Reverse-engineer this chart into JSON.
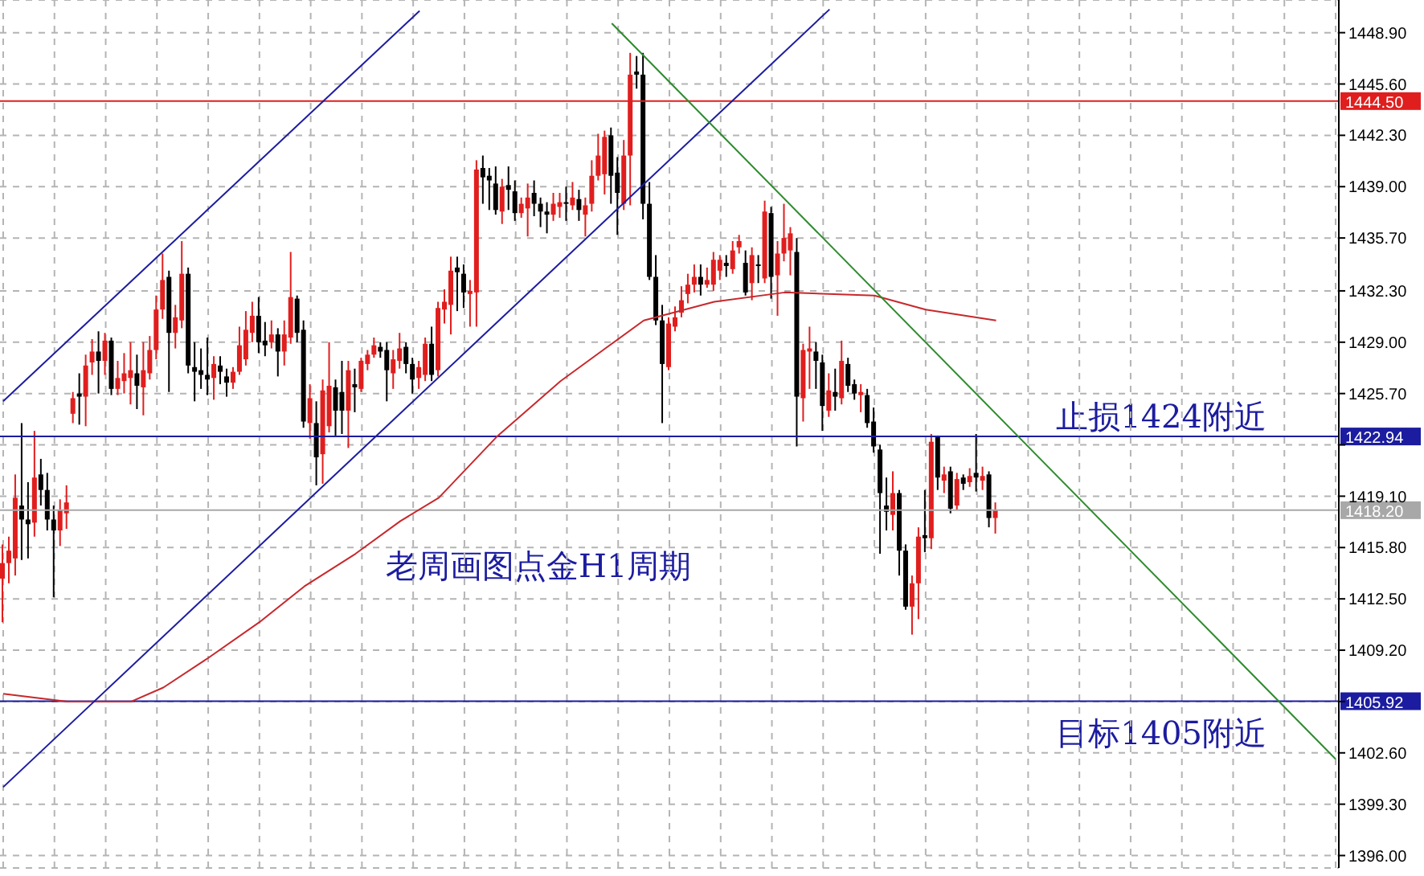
{
  "chart_data": {
    "type": "candlestick",
    "categories": [
      null,
      null,
      null,
      null,
      null,
      null,
      null,
      null,
      null,
      null,
      null,
      null,
      null,
      null,
      null,
      null,
      null,
      null,
      null,
      null,
      null,
      null,
      null,
      null,
      null,
      null,
      null,
      null,
      null,
      null,
      null,
      null,
      null,
      null,
      null,
      null,
      null,
      null,
      null,
      null,
      null,
      null,
      null,
      null,
      null,
      null,
      null,
      null,
      null,
      null,
      null,
      null,
      null,
      null,
      null,
      null,
      null,
      null,
      null,
      null,
      null,
      null,
      null,
      null,
      null,
      null,
      null,
      null,
      null,
      null,
      null,
      null,
      null,
      null,
      null,
      null,
      null,
      null,
      null,
      null,
      null,
      null,
      null,
      null,
      null,
      null,
      null,
      null,
      null,
      null,
      null,
      null,
      null,
      null,
      null,
      null,
      null,
      null,
      null,
      null,
      null,
      null,
      null,
      null,
      null,
      null,
      null,
      null,
      null,
      null,
      null,
      null,
      null,
      null,
      null,
      null,
      null,
      null,
      null,
      null,
      null,
      null,
      null,
      null,
      null,
      null,
      null,
      null,
      null,
      null,
      null,
      null,
      null,
      null,
      null,
      null,
      null,
      null,
      null,
      null,
      null,
      null,
      null,
      null,
      null,
      null,
      null,
      null,
      null,
      null,
      null,
      null,
      null,
      null,
      null,
      null,
      null,
      null,
      null,
      null,
      null,
      null,
      null,
      null,
      null,
      null,
      null,
      null,
      null,
      null,
      null,
      null,
      null,
      null,
      null,
      null,
      null,
      null,
      null,
      null,
      null,
      null,
      null,
      null,
      null,
      null,
      null,
      null,
      null,
      null,
      null,
      null,
      null,
      null,
      null,
      null,
      null,
      null,
      null,
      null,
      null,
      null,
      null,
      null,
      null,
      null,
      null,
      null,
      null
    ],
    "ohlc": [
      [
        1413.8,
        1416.0,
        1411.0,
        1414.8
      ],
      [
        1414.8,
        1416.5,
        1413.5,
        1415.6
      ],
      [
        1415.1,
        1420.5,
        1414.0,
        1419.0
      ],
      [
        1418.5,
        1423.8,
        1415.0,
        1417.6
      ],
      [
        1417.6,
        1420.0,
        1415.1,
        1417.3
      ],
      [
        1417.4,
        1423.3,
        1416.5,
        1420.3
      ],
      [
        1420.5,
        1421.5,
        1418.5,
        1419.5
      ],
      [
        1419.5,
        1420.6,
        1416.9,
        1417.6
      ],
      [
        1417.6,
        1418.5,
        1412.6,
        1416.9
      ],
      [
        1416.9,
        1418.9,
        1415.9,
        1418.2
      ],
      [
        1418.0,
        1419.8,
        1417.0,
        1418.7
      ],
      [
        1424.4,
        1425.8,
        1423.8,
        1425.4
      ],
      [
        1425.7,
        1427.0,
        1423.7,
        1425.5
      ],
      [
        1425.5,
        1428.2,
        1423.6,
        1427.5
      ],
      [
        1427.7,
        1429.2,
        1426.9,
        1428.4
      ],
      [
        1428.4,
        1429.7,
        1425.7,
        1427.8
      ],
      [
        1427.8,
        1429.6,
        1426.9,
        1429.1
      ],
      [
        1429.1,
        1429.3,
        1425.6,
        1426.0
      ],
      [
        1426.0,
        1427.8,
        1425.6,
        1426.7
      ],
      [
        1426.5,
        1428.3,
        1425.7,
        1427.0
      ],
      [
        1426.7,
        1429.0,
        1425.0,
        1427.2
      ],
      [
        1427.0,
        1428.2,
        1424.7,
        1426.2
      ],
      [
        1426.1,
        1429.0,
        1424.3,
        1427.2
      ],
      [
        1427.0,
        1429.4,
        1426.6,
        1428.5
      ],
      [
        1428.5,
        1432.0,
        1427.9,
        1431.1
      ],
      [
        1431.1,
        1434.7,
        1430.5,
        1433.0
      ],
      [
        1433.2,
        1433.6,
        1425.8,
        1429.6
      ],
      [
        1429.6,
        1431.4,
        1428.6,
        1430.6
      ],
      [
        1430.4,
        1435.5,
        1429.9,
        1433.4
      ],
      [
        1433.4,
        1433.8,
        1427.0,
        1427.5
      ],
      [
        1427.4,
        1429.0,
        1425.2,
        1427.1
      ],
      [
        1427.2,
        1428.6,
        1426.0,
        1426.9
      ],
      [
        1426.9,
        1429.3,
        1425.6,
        1426.6
      ],
      [
        1426.7,
        1428.1,
        1425.3,
        1427.6
      ],
      [
        1427.5,
        1428.1,
        1426.3,
        1427.1
      ],
      [
        1426.8,
        1427.3,
        1425.5,
        1426.4
      ],
      [
        1426.4,
        1427.4,
        1426.0,
        1427.1
      ],
      [
        1427.1,
        1430.0,
        1426.9,
        1428.8
      ],
      [
        1427.9,
        1431.0,
        1427.5,
        1429.8
      ],
      [
        1429.6,
        1431.6,
        1429.0,
        1430.7
      ],
      [
        1430.7,
        1431.9,
        1428.3,
        1429.0
      ],
      [
        1429.1,
        1430.3,
        1428.1,
        1428.8
      ],
      [
        1429.0,
        1430.4,
        1428.6,
        1429.5
      ],
      [
        1429.5,
        1429.9,
        1426.8,
        1428.4
      ],
      [
        1428.4,
        1430.4,
        1427.5,
        1429.5
      ],
      [
        1429.3,
        1434.8,
        1428.9,
        1431.9
      ],
      [
        1431.8,
        1432.0,
        1429.0,
        1429.6
      ],
      [
        1429.8,
        1430.4,
        1423.5,
        1423.9
      ],
      [
        1423.8,
        1426.3,
        1422.8,
        1425.4
      ],
      [
        1423.8,
        1425.2,
        1419.8,
        1421.6
      ],
      [
        1421.8,
        1426.6,
        1419.9,
        1425.9
      ],
      [
        1423.6,
        1429.0,
        1423.2,
        1426.2
      ],
      [
        1426.1,
        1426.6,
        1423.0,
        1424.6
      ],
      [
        1425.8,
        1427.8,
        1423.1,
        1424.6
      ],
      [
        1424.6,
        1427.8,
        1422.2,
        1427.2
      ],
      [
        1426.3,
        1427.3,
        1424.5,
        1426.1
      ],
      [
        1426.0,
        1428.0,
        1425.8,
        1427.8
      ],
      [
        1427.6,
        1428.5,
        1427.2,
        1428.2
      ],
      [
        1428.2,
        1429.3,
        1428.0,
        1428.8
      ],
      [
        1428.7,
        1429.0,
        1428.0,
        1428.4
      ],
      [
        1428.5,
        1429.0,
        1425.2,
        1427.2
      ],
      [
        1427.0,
        1428.5,
        1426.0,
        1427.9
      ],
      [
        1427.8,
        1429.6,
        1427.3,
        1428.6
      ],
      [
        1428.7,
        1429.0,
        1427.0,
        1427.6
      ],
      [
        1427.6,
        1428.0,
        1425.7,
        1426.6
      ],
      [
        1426.7,
        1427.8,
        1426.0,
        1427.4
      ],
      [
        1426.9,
        1429.3,
        1426.5,
        1428.9
      ],
      [
        1428.9,
        1430.0,
        1426.5,
        1426.9
      ],
      [
        1427.2,
        1431.6,
        1426.8,
        1431.2
      ],
      [
        1431.1,
        1432.4,
        1430.2,
        1431.6
      ],
      [
        1431.4,
        1434.5,
        1429.5,
        1433.6
      ],
      [
        1433.8,
        1434.5,
        1431.0,
        1433.5
      ],
      [
        1433.4,
        1434.0,
        1431.2,
        1432.2
      ],
      [
        1432.1,
        1433.0,
        1430.0,
        1432.3
      ],
      [
        1432.2,
        1440.7,
        1430.0,
        1440.1
      ],
      [
        1440.2,
        1441.0,
        1437.9,
        1439.6
      ],
      [
        1439.7,
        1440.2,
        1437.5,
        1439.4
      ],
      [
        1439.2,
        1440.3,
        1437.2,
        1437.5
      ],
      [
        1437.4,
        1439.5,
        1436.6,
        1439.0
      ],
      [
        1439.1,
        1440.3,
        1437.5,
        1438.8
      ],
      [
        1438.7,
        1439.4,
        1436.8,
        1437.3
      ],
      [
        1437.3,
        1438.3,
        1437.0,
        1437.9
      ],
      [
        1437.6,
        1439.2,
        1435.8,
        1438.3
      ],
      [
        1438.6,
        1439.4,
        1437.1,
        1437.9
      ],
      [
        1437.9,
        1438.3,
        1436.4,
        1437.4
      ],
      [
        1437.4,
        1438.0,
        1436.0,
        1437.2
      ],
      [
        1437.2,
        1438.6,
        1436.8,
        1437.9
      ],
      [
        1437.7,
        1438.6,
        1437.0,
        1438.0
      ],
      [
        1438.0,
        1439.0,
        1436.8,
        1437.9
      ],
      [
        1437.8,
        1439.3,
        1437.5,
        1438.3
      ],
      [
        1438.2,
        1438.8,
        1436.8,
        1437.5
      ],
      [
        1437.2,
        1438.3,
        1435.8,
        1437.8
      ],
      [
        1437.9,
        1440.7,
        1437.4,
        1439.7
      ],
      [
        1439.7,
        1442.4,
        1439.4,
        1441.0
      ],
      [
        1439.8,
        1442.6,
        1438.5,
        1442.2
      ],
      [
        1442.3,
        1442.8,
        1437.9,
        1439.7
      ],
      [
        1439.9,
        1440.9,
        1435.9,
        1438.6
      ],
      [
        1437.9,
        1442.0,
        1437.5,
        1441.0
      ],
      [
        1441.0,
        1447.6,
        1437.8,
        1446.2
      ],
      [
        1446.4,
        1447.4,
        1445.3,
        1446.2
      ],
      [
        1446.2,
        1447.6,
        1436.9,
        1437.9
      ],
      [
        1437.9,
        1439.3,
        1433.0,
        1433.2
      ],
      [
        1433.2,
        1434.6,
        1430.1,
        1430.4
      ],
      [
        1430.4,
        1431.4,
        1423.8,
        1427.6
      ],
      [
        1427.4,
        1430.6,
        1427.2,
        1430.2
      ],
      [
        1430.0,
        1431.3,
        1429.7,
        1430.6
      ],
      [
        1430.9,
        1432.6,
        1430.6,
        1431.7
      ],
      [
        1432.1,
        1433.4,
        1431.5,
        1432.7
      ],
      [
        1432.7,
        1434.0,
        1432.2,
        1433.2
      ],
      [
        1433.2,
        1434.0,
        1432.0,
        1432.7
      ],
      [
        1432.7,
        1433.8,
        1432.5,
        1433.0
      ],
      [
        1432.7,
        1434.8,
        1432.3,
        1434.3
      ],
      [
        1433.6,
        1434.6,
        1433.0,
        1434.3
      ],
      [
        1434.1,
        1434.6,
        1433.2,
        1433.9
      ],
      [
        1433.7,
        1435.5,
        1433.4,
        1434.9
      ],
      [
        1435.1,
        1435.9,
        1434.7,
        1435.5
      ],
      [
        1434.1,
        1434.9,
        1432.0,
        1432.2
      ],
      [
        1432.8,
        1435.1,
        1431.7,
        1434.6
      ],
      [
        1434.0,
        1434.6,
        1432.8,
        1433.9
      ],
      [
        1433.1,
        1438.1,
        1432.8,
        1437.4
      ],
      [
        1437.3,
        1437.7,
        1431.8,
        1433.2
      ],
      [
        1433.3,
        1435.5,
        1430.7,
        1434.7
      ],
      [
        1434.7,
        1437.9,
        1434.2,
        1435.7
      ],
      [
        1434.9,
        1436.4,
        1433.3,
        1436.0
      ],
      [
        1434.8,
        1435.7,
        1422.3,
        1425.5
      ],
      [
        1425.4,
        1428.9,
        1423.9,
        1428.5
      ],
      [
        1428.4,
        1430.0,
        1426.0,
        1428.6
      ],
      [
        1428.4,
        1429.0,
        1426.0,
        1427.8
      ],
      [
        1427.7,
        1428.2,
        1423.3,
        1424.9
      ],
      [
        1424.6,
        1427.0,
        1424.2,
        1425.9
      ],
      [
        1425.8,
        1427.3,
        1424.6,
        1425.5
      ],
      [
        1425.4,
        1429.1,
        1425.0,
        1427.8
      ],
      [
        1427.6,
        1428.0,
        1425.8,
        1426.2
      ],
      [
        1426.3,
        1426.6,
        1425.3,
        1425.7
      ],
      [
        1425.6,
        1426.3,
        1424.5,
        1425.8
      ],
      [
        1425.6,
        1426.0,
        1423.5,
        1423.8
      ],
      [
        1423.9,
        1424.8,
        1421.9,
        1422.3
      ],
      [
        1422.1,
        1422.4,
        1415.4,
        1419.3
      ],
      [
        1418.5,
        1420.3,
        1416.9,
        1418.1
      ],
      [
        1417.9,
        1420.7,
        1416.9,
        1419.3
      ],
      [
        1419.3,
        1419.5,
        1414.0,
        1415.6
      ],
      [
        1415.6,
        1416.0,
        1411.8,
        1412.0
      ],
      [
        1412.0,
        1414.0,
        1410.2,
        1413.5
      ],
      [
        1413.5,
        1417.1,
        1411.2,
        1416.5
      ],
      [
        1416.6,
        1419.5,
        1415.5,
        1416.4
      ],
      [
        1416.4,
        1423.1,
        1415.7,
        1422.6
      ],
      [
        1422.9,
        1423.0,
        1419.5,
        1420.3
      ],
      [
        1420.1,
        1421.0,
        1419.3,
        1420.5
      ],
      [
        1420.7,
        1421.0,
        1418.0,
        1418.3
      ],
      [
        1418.5,
        1420.6,
        1418.2,
        1420.2
      ],
      [
        1420.3,
        1420.5,
        1419.5,
        1419.9
      ],
      [
        1420.0,
        1420.9,
        1419.7,
        1420.4
      ],
      [
        1420.6,
        1423.1,
        1419.4,
        1420.3
      ],
      [
        1420.1,
        1421.0,
        1419.5,
        1420.4
      ],
      [
        1420.5,
        1420.7,
        1417.1,
        1417.7
      ],
      [
        1417.7,
        1418.7,
        1416.7,
        1418.2
      ],
      null,
      null,
      null,
      null,
      null,
      null,
      null,
      null,
      null,
      null,
      null,
      null,
      null,
      null,
      null,
      null,
      null,
      null,
      null,
      null,
      null,
      null,
      null,
      null,
      null,
      null,
      null,
      null,
      null,
      null,
      null,
      null,
      null,
      null,
      null,
      null,
      null,
      null,
      null,
      null,
      null,
      null,
      null,
      null,
      null,
      null,
      null,
      null,
      null,
      null,
      null,
      null,
      null
    ],
    "colors": [
      "#e01e1e",
      "#e01e1e",
      "#e01e1e",
      "#000000",
      "#000000",
      "#e01e1e",
      "#000000",
      "#000000",
      "#000000",
      "#e01e1e",
      "#e01e1e",
      "#e01e1e",
      "#000000",
      "#e01e1e",
      "#e01e1e",
      "#000000",
      "#e01e1e",
      "#000000",
      "#e01e1e",
      "#e01e1e",
      "#e01e1e",
      "#000000",
      "#e01e1e",
      "#e01e1e",
      "#e01e1e",
      "#e01e1e",
      "#000000",
      "#e01e1e",
      "#e01e1e",
      "#000000",
      "#000000",
      "#000000",
      "#000000",
      "#e01e1e",
      "#000000",
      "#000000",
      "#e01e1e",
      "#e01e1e",
      "#e01e1e",
      "#e01e1e",
      "#000000",
      "#000000",
      "#e01e1e",
      "#000000",
      "#e01e1e",
      "#e01e1e",
      "#000000",
      "#000000",
      "#e01e1e",
      "#000000",
      "#e01e1e",
      "#e01e1e",
      "#000000",
      "#000000",
      "#e01e1e",
      "#000000",
      "#e01e1e",
      "#e01e1e",
      "#e01e1e",
      "#000000",
      "#000000",
      "#e01e1e",
      "#e01e1e",
      "#000000",
      "#000000",
      "#e01e1e",
      "#e01e1e",
      "#000000",
      "#e01e1e",
      "#e01e1e",
      "#e01e1e",
      "#000000",
      "#000000",
      "#e01e1e",
      "#e01e1e",
      "#000000",
      "#000000",
      "#000000",
      "#e01e1e",
      "#000000",
      "#000000",
      "#e01e1e",
      "#e01e1e",
      "#000000",
      "#000000",
      "#000000",
      "#e01e1e",
      "#e01e1e",
      "#000000",
      "#e01e1e",
      "#000000",
      "#e01e1e",
      "#e01e1e",
      "#e01e1e",
      "#e01e1e",
      "#000000",
      "#000000",
      "#e01e1e",
      "#e01e1e",
      "#000000",
      "#000000",
      "#000000",
      "#000000",
      "#000000",
      "#e01e1e",
      "#e01e1e",
      "#e01e1e",
      "#e01e1e",
      "#e01e1e",
      "#000000",
      "#e01e1e",
      "#e01e1e",
      "#e01e1e",
      "#000000",
      "#e01e1e",
      "#e01e1e",
      "#000000",
      "#e01e1e",
      "#000000",
      "#e01e1e",
      "#000000",
      "#e01e1e",
      "#e01e1e",
      "#e01e1e",
      "#000000",
      "#e01e1e",
      "#e01e1e",
      "#000000",
      "#000000",
      "#e01e1e",
      "#000000",
      "#e01e1e",
      "#000000",
      "#000000",
      "#e01e1e",
      "#000000",
      "#000000",
      "#000000",
      "#000000",
      "#e01e1e",
      "#000000",
      "#000000",
      "#e01e1e",
      "#e01e1e",
      "#000000",
      "#e01e1e",
      "#000000",
      "#e01e1e",
      "#000000",
      "#e01e1e",
      "#000000",
      "#e01e1e",
      "#000000",
      "#e01e1e",
      "#000000",
      "#e01e1e",
      null,
      null,
      null,
      null,
      null,
      null,
      null,
      null,
      null,
      null,
      null,
      null,
      null,
      null,
      null,
      null,
      null,
      null,
      null,
      null,
      null,
      null,
      null,
      null,
      null,
      null,
      null,
      null,
      null,
      null,
      null,
      null,
      null,
      null,
      null,
      null,
      null,
      null,
      null,
      null,
      null,
      null,
      null,
      null,
      null,
      null,
      null,
      null,
      null,
      null,
      null,
      null,
      null
    ],
    "series": [
      {
        "type": "line",
        "color": "#c8282c",
        "values": [
          1406.4,
          null,
          null,
          null,
          null,
          null,
          null,
          null,
          null,
          null,
          1405.9,
          null,
          null,
          null,
          null,
          null,
          null,
          null,
          null,
          null,
          1405.9,
          null,
          null,
          null,
          null,
          1406.8,
          null,
          null,
          null,
          null,
          null,
          null,
          1408.7,
          null,
          null,
          null,
          null,
          null,
          null,
          null,
          1411.0,
          null,
          null,
          null,
          null,
          null,
          null,
          1413.3,
          null,
          null,
          null,
          null,
          null,
          null,
          null,
          1415.4,
          null,
          null,
          null,
          null,
          null,
          null,
          1417.5,
          null,
          null,
          null,
          null,
          null,
          1419.0,
          null,
          null,
          null,
          null,
          null,
          null,
          null,
          null,
          1422.9,
          null,
          null,
          null,
          null,
          null,
          null,
          null,
          null,
          null,
          1426.5,
          null,
          null,
          null,
          null,
          null,
          null,
          1428.6,
          null,
          null,
          null,
          null,
          null,
          1430.4,
          null,
          null,
          null,
          null,
          null,
          null,
          null,
          null,
          null,
          null,
          1431.6,
          null,
          null,
          null,
          null,
          null,
          null,
          null,
          null,
          null,
          null,
          1432.2,
          null,
          null,
          null,
          null,
          null,
          null,
          null,
          null,
          null,
          null,
          null,
          null,
          null,
          1432.0,
          null,
          null,
          null,
          null,
          null,
          null,
          null,
          1431.1,
          null,
          null,
          null,
          null,
          null,
          null,
          null,
          null,
          null,
          null,
          1430.4,
          null,
          null,
          null,
          null,
          null,
          null,
          null,
          null,
          null,
          null,
          null,
          null,
          null,
          null,
          null,
          null,
          null,
          null,
          null,
          null,
          null,
          null,
          null,
          null,
          null,
          null,
          null,
          null,
          null,
          null,
          null,
          null,
          null,
          null,
          null,
          null,
          null,
          null,
          null,
          null,
          null,
          null,
          null,
          null,
          null,
          null,
          null,
          null,
          null,
          null,
          null,
          null,
          null
        ]
      },
      {
        "type": "line",
        "color": "#1c1ca0",
        "values": [
          1400.4,
          null,
          null,
          null,
          null,
          null,
          null,
          null,
          null,
          null,
          null,
          null,
          null,
          null,
          null,
          null,
          null,
          null,
          null,
          null,
          null,
          null,
          null,
          null,
          null,
          null,
          null,
          null,
          null,
          null,
          null,
          null,
          null,
          null,
          null,
          null,
          null,
          null,
          null,
          null,
          null,
          null,
          null,
          null,
          null,
          null,
          null,
          null,
          null,
          null,
          null,
          null,
          null,
          null,
          null,
          null,
          null,
          null,
          null,
          null,
          null,
          null,
          null,
          null,
          null,
          null,
          null,
          null,
          null,
          null,
          null,
          null,
          null,
          null,
          null,
          null,
          null,
          null,
          null,
          null,
          null,
          null,
          null,
          null,
          null,
          null,
          null,
          null,
          null,
          null,
          null,
          null,
          null,
          null,
          null,
          null,
          null,
          null,
          null,
          null,
          null,
          null,
          null,
          null,
          null,
          null,
          null,
          null,
          null,
          null,
          null,
          null,
          null,
          null,
          null,
          null,
          null,
          null,
          null,
          null,
          null,
          null,
          null,
          null,
          null,
          null,
          null,
          null,
          null,
          1450.4,
          null,
          null,
          null,
          null,
          null,
          null,
          null,
          null,
          null,
          null,
          null,
          null,
          null,
          null,
          null,
          null,
          null,
          null,
          null,
          null,
          null,
          null,
          null,
          null,
          null,
          null,
          null,
          null,
          null,
          null,
          null,
          null,
          null,
          null,
          null,
          null,
          null,
          null,
          null,
          null,
          null,
          null,
          null,
          null,
          null,
          null,
          null,
          null,
          null,
          null,
          null,
          null,
          null,
          null,
          null,
          null,
          null,
          null,
          null,
          null,
          null,
          null,
          null,
          null,
          null,
          null,
          null,
          null,
          null,
          null,
          null,
          null,
          null,
          null,
          null,
          null,
          null,
          null,
          null
        ]
      },
      {
        "type": "line",
        "color": "#1c1ca0",
        "values": [
          1425.2,
          null,
          null,
          null,
          null,
          null,
          null,
          null,
          null,
          null,
          null,
          null,
          null,
          null,
          null,
          null,
          null,
          null,
          null,
          null,
          null,
          null,
          null,
          null,
          null,
          null,
          null,
          null,
          null,
          null,
          null,
          null,
          null,
          null,
          null,
          null,
          null,
          null,
          null,
          null,
          null,
          null,
          null,
          null,
          null,
          null,
          null,
          null,
          null,
          null,
          null,
          null,
          null,
          null,
          null,
          null,
          null,
          null,
          null,
          null,
          null,
          null,
          null,
          null,
          null,
          1450.3,
          null,
          null,
          null,
          null,
          null,
          null,
          null,
          null,
          null,
          null,
          null,
          null,
          null,
          null,
          null,
          null,
          null,
          null,
          null,
          null,
          null,
          null,
          null,
          null,
          null,
          null,
          null,
          null,
          null,
          null,
          null,
          null,
          null,
          null,
          null,
          null,
          null,
          null,
          null,
          null,
          null,
          null,
          null,
          null,
          null,
          null,
          null,
          null,
          null,
          null,
          null,
          null,
          null,
          null,
          null,
          null,
          null,
          null,
          null,
          null,
          null,
          null,
          null,
          null,
          null,
          null,
          null,
          null,
          null,
          null,
          null,
          null,
          null,
          null,
          null,
          null,
          null,
          null,
          null,
          null,
          null,
          null,
          null,
          null,
          null,
          null,
          null,
          null,
          null,
          null,
          null,
          null,
          null,
          null,
          null,
          null,
          null,
          null,
          null,
          null,
          null,
          null,
          null,
          null,
          null,
          null,
          null,
          null,
          null,
          null,
          null,
          null,
          null,
          null,
          null,
          null,
          null,
          null,
          null,
          null,
          null,
          null,
          null,
          null,
          null,
          null,
          null,
          null,
          null,
          null,
          null,
          null,
          null,
          null,
          null,
          null,
          null,
          null,
          null,
          null,
          null,
          null,
          null
        ]
      },
      {
        "type": "line",
        "color": "#2e8b2e",
        "values": [
          null,
          null,
          null,
          null,
          null,
          null,
          null,
          null,
          null,
          null,
          null,
          null,
          null,
          null,
          null,
          null,
          null,
          null,
          null,
          null,
          null,
          null,
          null,
          null,
          null,
          null,
          null,
          null,
          null,
          null,
          null,
          null,
          null,
          null,
          null,
          null,
          null,
          null,
          null,
          null,
          null,
          null,
          null,
          null,
          null,
          null,
          null,
          null,
          null,
          null,
          null,
          null,
          null,
          null,
          null,
          null,
          null,
          null,
          null,
          null,
          null,
          null,
          null,
          null,
          null,
          null,
          null,
          null,
          null,
          null,
          null,
          null,
          null,
          null,
          null,
          null,
          null,
          null,
          null,
          null,
          null,
          null,
          null,
          null,
          null,
          null,
          null,
          null,
          null,
          null,
          null,
          null,
          null,
          null,
          null,
          1449.5,
          null,
          null,
          null,
          null,
          null,
          null,
          null,
          null,
          null,
          null,
          null,
          null,
          null,
          null,
          null,
          null,
          null,
          null,
          null,
          null,
          null,
          null,
          null,
          null,
          null,
          null,
          null,
          null,
          null,
          null,
          null,
          null,
          null,
          null,
          null,
          null,
          null,
          null,
          null,
          null,
          null,
          null,
          null,
          null,
          null,
          null,
          null,
          null,
          null,
          null,
          null,
          null,
          null,
          null,
          null,
          null,
          null,
          null,
          null,
          null,
          null,
          null,
          null,
          null,
          null,
          null,
          null,
          null,
          null,
          null,
          null,
          null,
          null,
          null,
          null,
          null,
          null,
          null,
          null,
          null,
          null,
          null,
          null,
          null,
          null,
          null,
          null,
          null,
          null,
          null,
          null,
          null,
          null,
          null,
          null,
          null,
          null,
          null,
          null,
          null,
          null,
          null,
          null,
          null,
          null,
          null,
          null,
          null,
          null,
          null,
          null,
          null,
          1402.2
        ]
      }
    ],
    "ylim": [
      1395.2,
      1451.0
    ],
    "yticks": [
      {
        "value": 1396.0,
        "label": "1396.00"
      },
      {
        "value": 1399.3,
        "label": "1399.30"
      },
      {
        "value": 1402.6,
        "label": "1402.60"
      },
      {
        "value": 1405.9,
        "label": null
      },
      {
        "value": 1409.2,
        "label": "1409.20"
      },
      {
        "value": 1412.5,
        "label": "1412.50"
      },
      {
        "value": 1415.8,
        "label": "1415.80"
      },
      {
        "value": 1419.1,
        "label": "1419.10"
      },
      {
        "value": 1422.4,
        "label": null
      },
      {
        "value": 1425.7,
        "label": "1425.70"
      },
      {
        "value": 1429.0,
        "label": "1429.00"
      },
      {
        "value": 1432.3,
        "label": "1432.30"
      },
      {
        "value": 1435.7,
        "label": "1435.70"
      },
      {
        "value": 1439.0,
        "label": "1439.00"
      },
      {
        "value": 1442.3,
        "label": "1442.30"
      },
      {
        "value": 1445.6,
        "label": "1445.60"
      },
      {
        "value": 1448.9,
        "label": "1448.90"
      }
    ],
    "tick_labels": "y",
    "grid": true,
    "ref_lines": [
      {
        "axis": "y",
        "value": 1444.5,
        "label": "1444.50",
        "color": "#e01e1e"
      },
      {
        "axis": "y",
        "value": 1422.94,
        "label": "1422.94",
        "color": "#1c1ca0"
      },
      {
        "axis": "y",
        "value": 1418.2,
        "label": "1418.20",
        "color": "#a8a8a8"
      },
      {
        "axis": "y",
        "value": 1405.92,
        "label": "1405.92",
        "color": "#1c1ca0"
      }
    ],
    "annotations": [
      "止损1424附近",
      "目标1405附近",
      "老周画图点金H1周期"
    ]
  }
}
